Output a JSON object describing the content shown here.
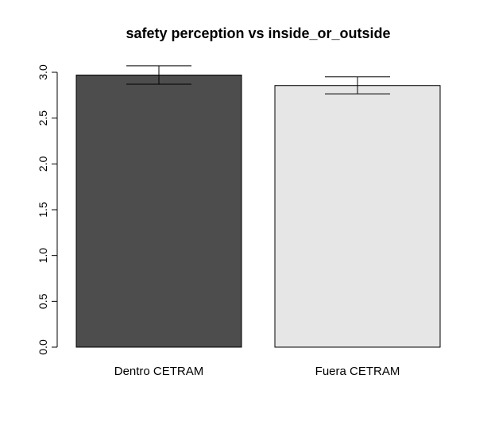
{
  "chart_data": {
    "type": "bar",
    "title": "safety perception vs inside_or_outside",
    "xlabel": "",
    "ylabel": "",
    "categories": [
      "Dentro CETRAM",
      "Fuera CETRAM"
    ],
    "values": [
      2.97,
      2.855
    ],
    "error_bars": [
      {
        "low": 2.87,
        "high": 3.07
      },
      {
        "low": 2.765,
        "high": 2.95
      }
    ],
    "ylim": [
      0,
      3.0
    ],
    "yticks": [
      "0.0",
      "0.5",
      "1.0",
      "1.5",
      "2.0",
      "2.5",
      "3.0"
    ],
    "bar_colors": [
      "#4d4d4d",
      "#e6e6e6"
    ],
    "grid": false,
    "legend": "none"
  }
}
